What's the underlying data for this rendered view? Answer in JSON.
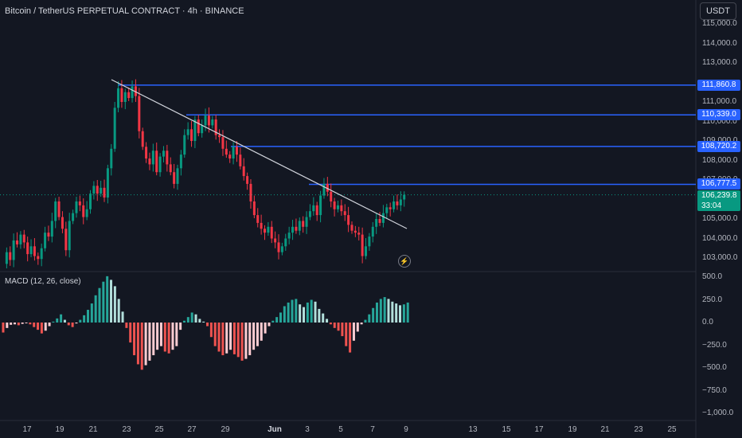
{
  "header": {
    "symbol_title": "Bitcoin / TetherUS PERPETUAL CONTRACT · 4h · BINANCE",
    "currency_button": "USDT"
  },
  "indicator": {
    "label": "MACD (12, 26, close)"
  },
  "price_axis": {
    "ticks": [
      "115,000.0",
      "114,000.0",
      "113,000.0",
      "111,000.0",
      "110,000.0",
      "109,000.0",
      "108,000.0",
      "107,000.0",
      "105,000.0",
      "104,000.0",
      "103,000.0"
    ],
    "tick_values": [
      115000,
      114000,
      113000,
      111000,
      110000,
      109000,
      108000,
      107000,
      105000,
      104000,
      103000
    ]
  },
  "macd_axis": {
    "ticks": [
      "500.0",
      "250.0",
      "0.0",
      "−250.0",
      "−500.0",
      "−750.0",
      "−1,000.0"
    ],
    "tick_values": [
      500,
      250,
      0,
      -250,
      -500,
      -750,
      -1000
    ]
  },
  "levels": [
    {
      "label": "111,860.8",
      "value": 111860.8
    },
    {
      "label": "110,339.0",
      "value": 110339.0
    },
    {
      "label": "108,720.2",
      "value": 108720.2
    },
    {
      "label": "106,777.5",
      "value": 106777.5
    }
  ],
  "current_price": {
    "label": "106,239.8",
    "countdown": "33:04",
    "value": 106239.8
  },
  "date_axis": [
    {
      "label": "17"
    },
    {
      "label": "19"
    },
    {
      "label": "21"
    },
    {
      "label": "23"
    },
    {
      "label": "25"
    },
    {
      "label": "27"
    },
    {
      "label": "29"
    },
    {
      "label": "Jun",
      "bold": true
    },
    {
      "label": "3"
    },
    {
      "label": "5"
    },
    {
      "label": "7"
    },
    {
      "label": "9"
    },
    {
      "label": "13"
    },
    {
      "label": "15"
    },
    {
      "label": "17"
    },
    {
      "label": "19"
    },
    {
      "label": "21"
    },
    {
      "label": "23"
    },
    {
      "label": "25"
    }
  ],
  "colors": {
    "up": "#089981",
    "down": "#f23645",
    "level_line": "#2962ff",
    "trendline": "#d1d4dc",
    "macd_pos": "#26a69a",
    "macd_pos_fade": "#b2dfdb",
    "macd_neg": "#ef5350",
    "macd_neg_fade": "#ffcdd2"
  },
  "icons": {
    "alert": "lightning-bolt-icon"
  },
  "alert_glyph": "⚡",
  "price_series": [
    102700,
    103300,
    102900,
    103900,
    103700,
    104200,
    103800,
    103200,
    103600,
    103100,
    102950,
    103500,
    104300,
    104100,
    104900,
    105900,
    105100,
    104500,
    103400,
    104900,
    105300,
    105900,
    105700,
    105100,
    105500,
    106300,
    106700,
    106300,
    106600,
    106100,
    107600,
    108600,
    110700,
    111700,
    111000,
    111500,
    111200,
    111800,
    111300,
    109500,
    108700,
    108100,
    107800,
    108500,
    107400,
    108200,
    108500,
    107800,
    107400,
    106800,
    107600,
    108300,
    109300,
    109600,
    109000,
    110100,
    109400,
    109800,
    110300,
    109800,
    110100,
    109300,
    109200,
    108600,
    108300,
    108100,
    108700,
    108300,
    107700,
    107200,
    106800,
    105900,
    105200,
    104800,
    104500,
    104300,
    104600,
    104000,
    103800,
    103300,
    103600,
    104000,
    104300,
    104600,
    104400,
    104900,
    104600,
    105100,
    105400,
    105700,
    105200,
    106200,
    106800,
    106400,
    105900,
    105500,
    105700,
    105400,
    105200,
    104700,
    104400,
    104300,
    104200,
    103100,
    103600,
    104100,
    104600,
    105000,
    104800,
    105300,
    105600,
    105500,
    105900,
    105700,
    106000,
    106240
  ],
  "macd_series": [
    -110,
    -60,
    -25,
    -20,
    -30,
    -15,
    -5,
    -20,
    -50,
    -80,
    -120,
    -90,
    -40,
    10,
    45,
    90,
    30,
    -30,
    -50,
    -10,
    30,
    80,
    140,
    210,
    300,
    380,
    450,
    510,
    470,
    400,
    260,
    120,
    -60,
    -220,
    -360,
    -460,
    -520,
    -470,
    -420,
    -360,
    -300,
    -260,
    -320,
    -340,
    -300,
    -260,
    -80,
    20,
    60,
    110,
    90,
    40,
    10,
    -40,
    -160,
    -260,
    -320,
    -360,
    -340,
    -300,
    -350,
    -380,
    -420,
    -400,
    -360,
    -300,
    -260,
    -200,
    -120,
    -40,
    20,
    60,
    110,
    180,
    220,
    250,
    260,
    200,
    170,
    220,
    250,
    230,
    150,
    100,
    40,
    -20,
    -60,
    -90,
    -150,
    -260,
    -330,
    -200,
    -100,
    -20,
    30,
    90,
    160,
    220,
    260,
    280,
    260,
    230,
    210,
    190,
    200,
    220
  ]
}
